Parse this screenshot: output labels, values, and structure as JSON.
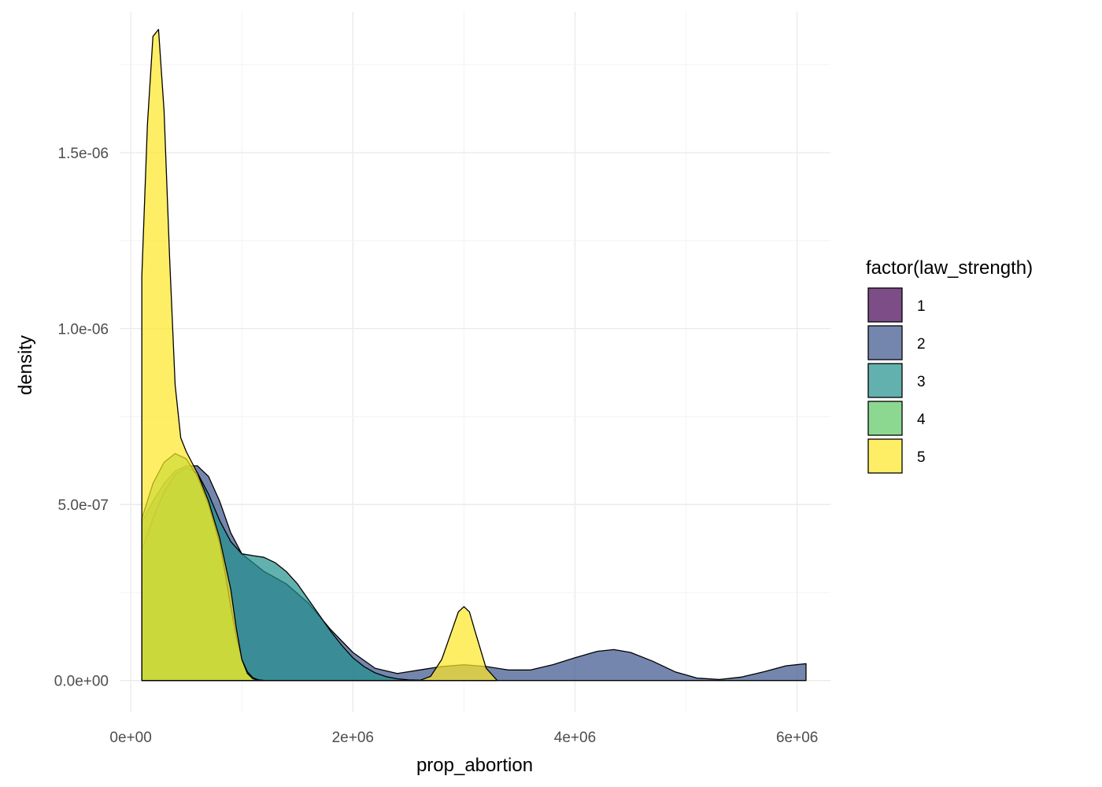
{
  "chart_data": {
    "type": "area",
    "title": "",
    "xlabel": "prop_abortion",
    "ylabel": "density",
    "xlim": [
      -100000,
      6300000
    ],
    "ylim": [
      -9e-08,
      1.9e-06
    ],
    "x_ticks": [
      0,
      2000000,
      4000000,
      6000000
    ],
    "x_tick_labels": [
      "0e+00",
      "2e+06",
      "4e+06",
      "6e+06"
    ],
    "y_ticks": [
      0,
      5e-07,
      1e-06,
      1.5e-06
    ],
    "y_tick_labels": [
      "0.0e+00",
      "5.0e-07",
      "1.0e-06",
      "1.5e-06"
    ],
    "grid": true,
    "legend": {
      "title": "factor(law_strength)",
      "position": "right",
      "entries": [
        "1",
        "2",
        "3",
        "4",
        "5"
      ]
    },
    "series": [
      {
        "name": "2",
        "color": "#3B528B",
        "x": [
          100000,
          200000,
          300000,
          400000,
          500000,
          600000,
          700000,
          800000,
          900000,
          1000000,
          1200000,
          1400000,
          1600000,
          1800000,
          2000000,
          2200000,
          2400000,
          2600000,
          2800000,
          3000000,
          3200000,
          3400000,
          3600000,
          3800000,
          4000000,
          4200000,
          4350000,
          4500000,
          4700000,
          4900000,
          5100000,
          5300000,
          5500000,
          5700000,
          5900000,
          6080000
        ],
        "y": [
          4.5e-07,
          5.1e-07,
          5.6e-07,
          5.95e-07,
          6.1e-07,
          6.1e-07,
          5.8e-07,
          5.1e-07,
          4.2e-07,
          3.6e-07,
          3.1e-07,
          2.75e-07,
          2.2e-07,
          1.45e-07,
          8e-08,
          3.5e-08,
          2e-08,
          3e-08,
          4e-08,
          4.5e-08,
          4e-08,
          3e-08,
          3e-08,
          4.5e-08,
          6.5e-08,
          8.3e-08,
          8.8e-08,
          8e-08,
          5.5e-08,
          2.5e-08,
          7e-09,
          3e-09,
          1e-08,
          2.5e-08,
          4.2e-08,
          4.8e-08
        ]
      },
      {
        "name": "3",
        "color": "#21908C",
        "x": [
          100000,
          200000,
          300000,
          400000,
          500000,
          600000,
          700000,
          800000,
          900000,
          1000000,
          1100000,
          1200000,
          1300000,
          1400000,
          1500000,
          1600000,
          1700000,
          1800000,
          1900000,
          2000000,
          2100000,
          2200000,
          2300000,
          2400000,
          2500000,
          2600000,
          2700000
        ],
        "y": [
          3.7e-07,
          4.6e-07,
          5.35e-07,
          5.85e-07,
          6.05e-07,
          5.9e-07,
          5.3e-07,
          4.55e-07,
          3.95e-07,
          3.6e-07,
          3.55e-07,
          3.5e-07,
          3.35e-07,
          3.1e-07,
          2.75e-07,
          2.3e-07,
          1.85e-07,
          1.4e-07,
          1e-07,
          6.5e-08,
          4e-08,
          2.2e-08,
          1.1e-08,
          5e-09,
          2e-09,
          1e-09,
          0
        ]
      },
      {
        "name": "4",
        "color": "#5DC863",
        "x": [
          100000,
          200000,
          300000,
          400000,
          500000,
          600000,
          700000,
          800000,
          850000,
          900000,
          950000,
          1000000,
          1050000,
          1100000,
          1150000,
          1200000
        ],
        "y": [
          4.6e-07,
          5.6e-07,
          6.2e-07,
          6.45e-07,
          6.3e-07,
          5.8e-07,
          5e-07,
          3.9e-07,
          3.05e-07,
          2.1e-07,
          1.25e-07,
          6e-08,
          2.5e-08,
          8e-09,
          2e-09,
          0
        ]
      },
      {
        "name": "5",
        "color": "#FDE725",
        "x": [
          100000,
          150000,
          200000,
          250000,
          300000,
          350000,
          400000,
          450000,
          500000,
          550000,
          600000,
          700000,
          800000,
          900000,
          950000,
          1000000,
          1050000,
          1100000,
          1150000,
          1200000,
          2600000,
          2700000,
          2800000,
          2900000,
          2950000,
          3000000,
          3050000,
          3100000,
          3200000,
          3300000
        ],
        "y": [
          1.15e-06,
          1.58e-06,
          1.83e-06,
          1.85e-06,
          1.62e-06,
          1.2e-06,
          8.4e-07,
          6.9e-07,
          6.5e-07,
          6.2e-07,
          5.9e-07,
          5.1e-07,
          4.05e-07,
          2.6e-07,
          1.5e-07,
          6e-08,
          2e-08,
          5e-09,
          1e-09,
          0,
          0,
          1.2e-08,
          6e-08,
          1.5e-07,
          1.95e-07,
          2.1e-07,
          1.95e-07,
          1.4e-07,
          3.5e-08,
          0
        ]
      }
    ]
  }
}
